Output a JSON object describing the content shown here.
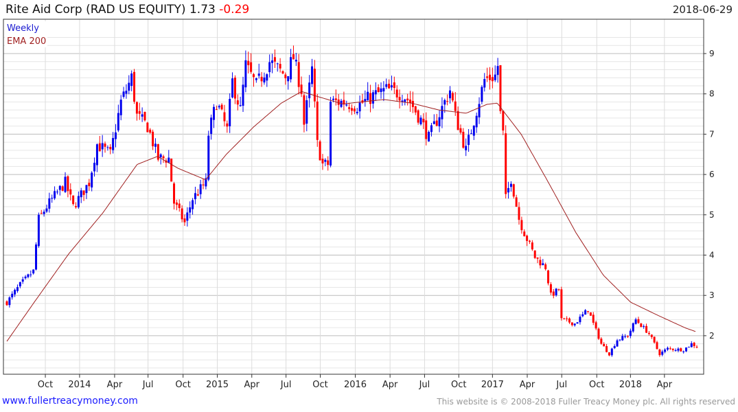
{
  "header": {
    "name": "Rite Aid Corp (RAD US EQUITY)",
    "last": "1.73",
    "change": "-0.29",
    "date": "2018-06-29"
  },
  "footer": {
    "site_link": "www.fullertreacymoney.com",
    "copyright": "This website is © 2008-2018 Fuller Treacy Money plc. All rights reserved"
  },
  "chart_data": {
    "type": "candlestick",
    "legend": [
      "Weekly",
      "EMA 200"
    ],
    "legend_placement": "top-left",
    "colors": {
      "up": "#0000ee",
      "down": "#ff0000",
      "ema": "#a02020"
    },
    "ylim": [
      1,
      9.5
    ],
    "y_ticks": [
      "2",
      "3",
      "4",
      "5",
      "6",
      "7",
      "8",
      "9"
    ],
    "x_range_weeks": [
      0,
      261
    ],
    "x_ticks": [
      {
        "label": "Oct",
        "week": 14.5
      },
      {
        "label": "2014",
        "week": 27.4
      },
      {
        "label": "Apr",
        "week": 40.6
      },
      {
        "label": "Jul",
        "week": 53.2
      },
      {
        "label": "Oct",
        "week": 66.4
      },
      {
        "label": "2015",
        "week": 79.3
      },
      {
        "label": "Apr",
        "week": 92.3
      },
      {
        "label": "Jul",
        "week": 105.2
      },
      {
        "label": "Oct",
        "week": 118.1
      },
      {
        "label": "2016",
        "week": 131.3
      },
      {
        "label": "Apr",
        "week": 144.4
      },
      {
        "label": "Jul",
        "week": 157.4
      },
      {
        "label": "Oct",
        "week": 170.3
      },
      {
        "label": "2017",
        "week": 183
      },
      {
        "label": "Apr",
        "week": 196.1
      },
      {
        "label": "Jul",
        "week": 209.1
      },
      {
        "label": "Oct",
        "week": 222.3
      },
      {
        "label": "2018",
        "week": 235
      },
      {
        "label": "Apr",
        "week": 247.8
      }
    ],
    "close_anchors": [
      [
        0,
        2.83
      ],
      [
        5,
        3.26
      ],
      [
        10,
        3.6
      ],
      [
        12,
        4.9
      ],
      [
        16,
        5.3
      ],
      [
        22,
        5.8
      ],
      [
        25,
        5.2
      ],
      [
        31,
        5.8
      ],
      [
        34,
        6.75
      ],
      [
        39,
        6.5
      ],
      [
        43,
        7.8
      ],
      [
        47,
        8.4
      ],
      [
        49,
        7.45
      ],
      [
        53,
        7.2
      ],
      [
        57,
        6.4
      ],
      [
        61,
        6.4
      ],
      [
        63,
        5.3
      ],
      [
        67,
        4.8
      ],
      [
        70,
        5.4
      ],
      [
        75,
        5.8
      ],
      [
        76,
        7.0
      ],
      [
        79,
        7.8
      ],
      [
        83,
        7.1
      ],
      [
        85,
        8.3
      ],
      [
        88,
        7.6
      ],
      [
        90,
        8.7
      ],
      [
        94,
        8.2
      ],
      [
        99,
        8.8
      ],
      [
        105,
        8.45
      ],
      [
        108,
        8.9
      ],
      [
        111,
        8.1
      ],
      [
        112,
        7.25
      ],
      [
        115,
        8.6
      ],
      [
        117,
        6.75
      ],
      [
        119,
        6.25
      ],
      [
        121,
        6.25
      ],
      [
        122,
        7.8
      ],
      [
        127,
        7.8
      ],
      [
        132,
        7.7
      ],
      [
        138,
        7.95
      ],
      [
        143,
        8.1
      ],
      [
        149,
        8.0
      ],
      [
        152,
        7.8
      ],
      [
        156,
        7.35
      ],
      [
        159,
        6.9
      ],
      [
        163,
        7.5
      ],
      [
        167,
        8.1
      ],
      [
        169,
        7.45
      ],
      [
        173,
        6.6
      ],
      [
        176,
        7.35
      ],
      [
        180,
        8.35
      ],
      [
        184,
        8.45
      ],
      [
        185,
        8.7
      ],
      [
        186,
        7.5
      ],
      [
        187,
        7.0
      ],
      [
        188,
        5.4
      ],
      [
        190,
        5.9
      ],
      [
        193,
        4.9
      ],
      [
        195,
        4.55
      ],
      [
        199,
        3.95
      ],
      [
        203,
        3.7
      ],
      [
        205,
        3.0
      ],
      [
        208,
        3.15
      ],
      [
        209,
        2.4
      ],
      [
        214,
        2.3
      ],
      [
        219,
        2.65
      ],
      [
        221,
        2.3
      ],
      [
        224,
        1.8
      ],
      [
        227,
        1.55
      ],
      [
        230,
        1.9
      ],
      [
        234,
        2.0
      ],
      [
        237,
        2.4
      ],
      [
        242,
        2.05
      ],
      [
        246,
        1.55
      ],
      [
        249,
        1.68
      ],
      [
        255,
        1.65
      ],
      [
        258,
        1.8
      ],
      [
        260,
        1.73
      ]
    ],
    "ema_anchors": [
      [
        0,
        1.86
      ],
      [
        10.3,
        2.83
      ],
      [
        23.3,
        4.03
      ],
      [
        36.2,
        5.05
      ],
      [
        49.1,
        6.25
      ],
      [
        56.8,
        6.45
      ],
      [
        64.6,
        6.15
      ],
      [
        74.9,
        5.87
      ],
      [
        82.7,
        6.5
      ],
      [
        93,
        7.18
      ],
      [
        103.4,
        7.77
      ],
      [
        111.1,
        8.06
      ],
      [
        116.3,
        7.95
      ],
      [
        126.6,
        7.75
      ],
      [
        142.1,
        7.86
      ],
      [
        152.5,
        7.77
      ],
      [
        162.8,
        7.6
      ],
      [
        173.1,
        7.52
      ],
      [
        180.9,
        7.74
      ],
      [
        184.8,
        7.77
      ],
      [
        193.8,
        7.0
      ],
      [
        204.1,
        5.8
      ],
      [
        214.5,
        4.55
      ],
      [
        224.8,
        3.5
      ],
      [
        235.1,
        2.83
      ],
      [
        245.5,
        2.5
      ],
      [
        255.8,
        2.19
      ],
      [
        259.7,
        2.1
      ]
    ]
  }
}
